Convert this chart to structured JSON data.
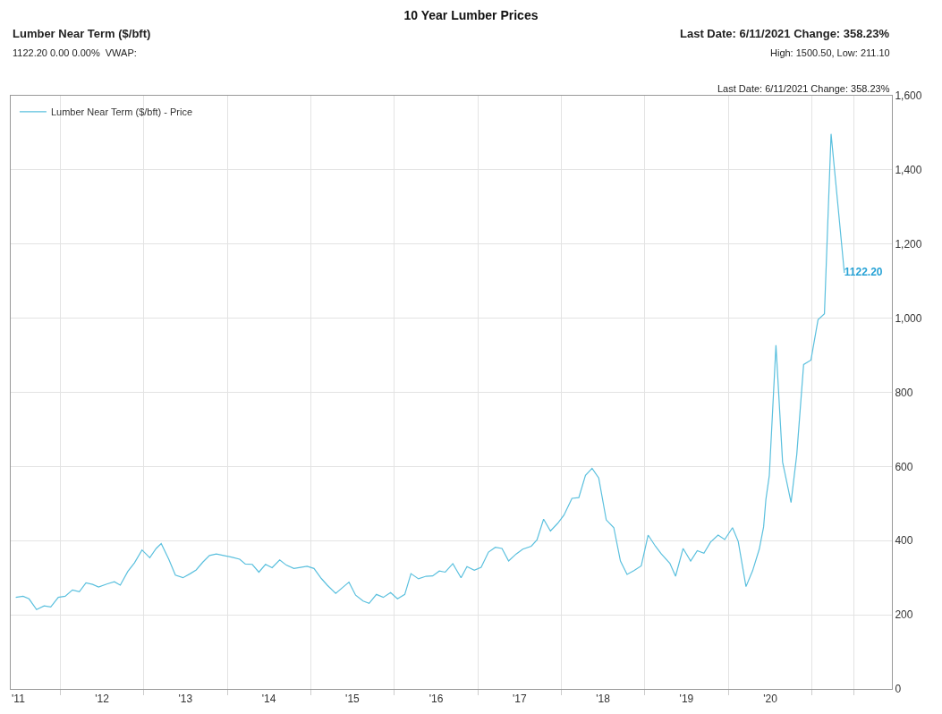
{
  "chart_data": {
    "type": "line",
    "title": "10 Year Lumber Prices",
    "annotations": [
      "Lumber Near Term ($/bft)",
      "1122.20 0.00 0.00%  VWAP:",
      "Last Date: 6/11/2021 Change: 358.23%",
      "High: 1500.50, Low: 211.10",
      "Last Date: 6/11/2021 Change: 358.23%"
    ],
    "x": [
      "2011-06-21",
      "2011-07-23",
      "2011-08-18",
      "2011-09-20",
      "2011-10-23",
      "2011-11-21",
      "2011-12-24",
      "2012-01-23",
      "2012-02-24",
      "2012-03-25",
      "2012-04-23",
      "2012-05-22",
      "2012-06-17",
      "2012-07-23",
      "2012-08-25",
      "2012-09-20",
      "2012-10-23",
      "2012-11-21",
      "2012-12-24",
      "2013-01-27",
      "2013-02-24",
      "2013-03-18",
      "2013-04-20",
      "2013-05-19",
      "2013-06-21",
      "2013-07-23",
      "2013-08-18",
      "2013-09-16",
      "2013-10-15",
      "2013-11-14",
      "2013-12-16",
      "2014-01-23",
      "2014-02-24",
      "2014-03-21",
      "2014-04-20",
      "2014-05-19",
      "2014-06-17",
      "2014-07-16",
      "2014-08-18",
      "2014-09-16",
      "2014-10-19",
      "2014-11-17",
      "2014-12-16",
      "2015-01-15",
      "2015-02-16",
      "2015-03-14",
      "2015-04-20",
      "2015-05-19",
      "2015-06-17",
      "2015-07-16",
      "2015-08-18",
      "2015-09-13",
      "2015-10-15",
      "2015-11-14",
      "2015-12-16",
      "2016-01-15",
      "2016-02-16",
      "2016-03-14",
      "2016-04-16",
      "2016-05-19",
      "2016-06-17",
      "2016-07-16",
      "2016-08-11",
      "2016-09-13",
      "2016-10-19",
      "2016-11-14",
      "2016-12-16",
      "2017-01-15",
      "2017-02-16",
      "2017-03-18",
      "2017-04-16",
      "2017-05-15",
      "2017-06-17",
      "2017-07-16",
      "2017-08-22",
      "2017-09-16",
      "2017-10-15",
      "2017-11-14",
      "2017-12-16",
      "2018-01-12",
      "2018-02-16",
      "2018-03-18",
      "2018-04-16",
      "2018-05-15",
      "2018-06-13",
      "2018-07-16",
      "2018-08-18",
      "2018-09-16",
      "2018-10-15",
      "2018-11-14",
      "2018-12-16",
      "2019-01-15",
      "2019-02-16",
      "2019-03-14",
      "2019-04-20",
      "2019-05-15",
      "2019-06-17",
      "2019-07-20",
      "2019-08-18",
      "2019-09-16",
      "2019-10-15",
      "2019-11-17",
      "2019-12-16",
      "2020-01-19",
      "2020-02-13",
      "2020-03-18",
      "2020-04-16",
      "2020-05-15",
      "2020-06-03",
      "2020-06-13",
      "2020-06-28",
      "2020-07-27",
      "2020-08-25",
      "2020-10-01",
      "2020-10-26",
      "2020-11-25",
      "2020-12-27",
      "2021-01-27",
      "2021-02-24",
      "2021-03-25",
      "2021-04-23",
      "2021-05-22"
    ],
    "series": [
      {
        "name": "Lumber Near Term ($/bft) - Price",
        "color": "#5bc0de",
        "values": [
          247,
          250,
          243,
          214,
          224,
          221,
          247,
          250,
          267,
          262,
          286,
          282,
          275,
          283,
          289,
          280,
          317,
          340,
          375,
          354,
          379,
          392,
          350,
          307,
          300,
          311,
          321,
          342,
          360,
          364,
          360,
          355,
          350,
          337,
          336,
          315,
          336,
          327,
          348,
          334,
          325,
          328,
          331,
          325,
          298,
          280,
          258,
          273,
          288,
          253,
          237,
          231,
          255,
          247,
          260,
          243,
          255,
          311,
          297,
          304,
          305,
          318,
          315,
          338,
          300,
          330,
          320,
          328,
          369,
          382,
          379,
          345,
          364,
          377,
          385,
          402,
          458,
          426,
          447,
          469,
          514,
          516,
          576,
          595,
          569,
          456,
          435,
          345,
          309,
          319,
          332,
          415,
          385,
          364,
          339,
          304,
          379,
          345,
          373,
          366,
          396,
          415,
          403,
          435,
          398,
          276,
          319,
          377,
          437,
          511,
          576,
          927,
          612,
          503,
          632,
          875,
          887,
          996,
          1012,
          1497,
          1311,
          1122.2
        ],
        "value_labels": [
          null,
          null,
          null,
          null,
          null,
          null,
          null,
          null,
          null,
          null,
          null,
          null,
          null,
          null,
          null,
          null,
          null,
          null,
          null,
          null,
          null,
          null,
          null,
          null,
          null,
          null,
          null,
          null,
          null,
          null,
          null,
          null,
          null,
          null,
          null,
          null,
          null,
          null,
          null,
          null,
          null,
          null,
          null,
          null,
          null,
          null,
          null,
          null,
          null,
          null,
          null,
          null,
          null,
          null,
          null,
          null,
          null,
          null,
          null,
          null,
          null,
          null,
          null,
          null,
          null,
          null,
          null,
          null,
          null,
          null,
          null,
          null,
          null,
          null,
          null,
          null,
          null,
          null,
          null,
          null,
          null,
          null,
          null,
          null,
          null,
          null,
          null,
          null,
          null,
          null,
          null,
          null,
          null,
          null,
          null,
          null,
          null,
          null,
          null,
          null,
          null,
          null,
          null,
          null,
          null,
          null,
          null,
          null,
          null,
          null,
          null,
          null,
          null,
          null,
          null,
          null,
          null,
          null,
          null,
          null,
          null,
          "1122.20"
        ]
      }
    ],
    "xlim": [
      "2011-05-30",
      "2021-12-16"
    ],
    "xticks": [
      {
        "value": "2011-07-02",
        "label": "'11"
      },
      {
        "value": "2012-01-01",
        "label": null
      },
      {
        "value": "2012-07-02",
        "label": "'12"
      },
      {
        "value": "2013-01-01",
        "label": null
      },
      {
        "value": "2013-07-02",
        "label": "'13"
      },
      {
        "value": "2014-01-01",
        "label": null
      },
      {
        "value": "2014-07-02",
        "label": "'14"
      },
      {
        "value": "2015-01-01",
        "label": null
      },
      {
        "value": "2015-07-02",
        "label": "'15"
      },
      {
        "value": "2016-01-01",
        "label": null
      },
      {
        "value": "2016-07-02",
        "label": "'16"
      },
      {
        "value": "2017-01-01",
        "label": null
      },
      {
        "value": "2017-07-02",
        "label": "'17"
      },
      {
        "value": "2018-01-01",
        "label": null
      },
      {
        "value": "2018-07-02",
        "label": "'18"
      },
      {
        "value": "2019-01-01",
        "label": null
      },
      {
        "value": "2019-07-02",
        "label": "'19"
      },
      {
        "value": "2020-01-01",
        "label": null
      },
      {
        "value": "2020-07-02",
        "label": "'20"
      },
      {
        "value": "2021-01-01",
        "label": null
      },
      {
        "value": "2021-07-02",
        "label": null
      }
    ],
    "ylim": [
      0,
      1600
    ],
    "yticks": [
      0,
      200,
      400,
      600,
      800,
      {
        "value": 1000,
        "label": "1,000"
      },
      {
        "value": 1200,
        "label": "1,200"
      },
      {
        "value": 1400,
        "label": "1,400"
      },
      {
        "value": 1600,
        "label": "1,600"
      }
    ],
    "grid": true,
    "legend": "top left",
    "marker": "none",
    "line_style": "solid"
  }
}
